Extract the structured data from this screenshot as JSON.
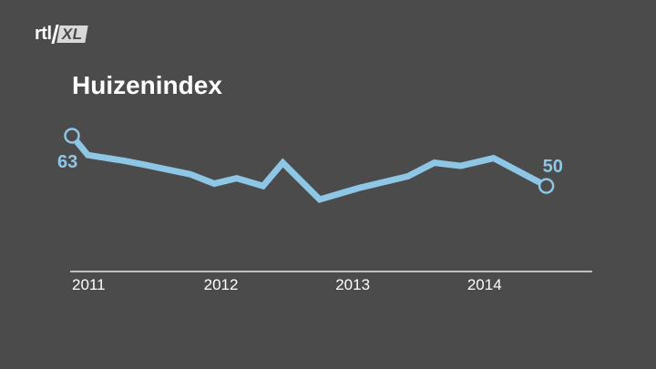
{
  "logo": {
    "text": "rtl",
    "badge": "XL"
  },
  "chart_data": {
    "type": "line",
    "title": "Huizenindex",
    "x_tick_labels": [
      "2011",
      "2012",
      "2013",
      "2014"
    ],
    "x_tick_values": [
      2011,
      2012,
      2013,
      2014
    ],
    "xlim": [
      2011,
      2014.9
    ],
    "ylim": [
      38,
      67
    ],
    "series": [
      {
        "x": [
          2011.0,
          2011.12,
          2011.4,
          2011.55,
          2011.9,
          2012.08,
          2012.25,
          2012.45,
          2012.6,
          2012.88,
          2013.18,
          2013.55,
          2013.75,
          2013.95,
          2014.2,
          2014.6
        ],
        "values": [
          63,
          58,
          56.5,
          55.5,
          53,
          50.6,
          52,
          50,
          56,
          46.5,
          49.5,
          52.5,
          56,
          55.2,
          57.2,
          50
        ],
        "color": "#8ec6e6"
      }
    ],
    "data_labels": [
      {
        "text": "63",
        "value": 63,
        "at": "start"
      },
      {
        "text": "50",
        "value": 50,
        "at": "end"
      }
    ],
    "grid": false,
    "colors": {
      "line": "#8ec6e6",
      "axis": "#e6e6e6",
      "text": "#ffffff",
      "background": "#4b4b4b"
    }
  }
}
